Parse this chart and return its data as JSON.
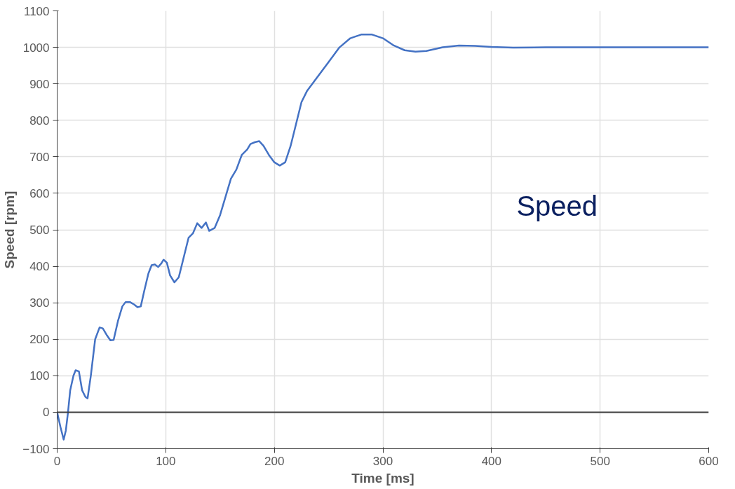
{
  "chart_data": {
    "type": "line",
    "xlabel": "Time [ms]",
    "ylabel": "Speed [rpm]",
    "annotations": [
      "Speed"
    ],
    "xlim": [
      0,
      600
    ],
    "xticks": [
      0,
      100,
      200,
      300,
      400,
      500,
      600
    ],
    "ylim": [
      -100,
      1100
    ],
    "yticks": [
      -100,
      0,
      100,
      200,
      300,
      400,
      500,
      600,
      700,
      800,
      900,
      1000,
      1100
    ],
    "grid": true,
    "marker": "none",
    "line_style": "solid",
    "ref_lines": [
      {
        "axis": "y",
        "value": 0,
        "color": "#404040"
      }
    ],
    "x": [
      0,
      3,
      6,
      8,
      10,
      12,
      15,
      17,
      20,
      23,
      26,
      28,
      31,
      35,
      39,
      42,
      46,
      49,
      52,
      56,
      60,
      63,
      67,
      71,
      74,
      77,
      80,
      84,
      87,
      90,
      93,
      96,
      98,
      101,
      104,
      108,
      112,
      117,
      121,
      125,
      129,
      133,
      137,
      140,
      145,
      150,
      155,
      160,
      165,
      170,
      175,
      178,
      182,
      186,
      190,
      195,
      200,
      205,
      210,
      215,
      220,
      225,
      230,
      240,
      250,
      260,
      270,
      280,
      290,
      300,
      310,
      320,
      330,
      340,
      355,
      370,
      385,
      400,
      420,
      450,
      500,
      550,
      600
    ],
    "series": [
      {
        "color": "#4472c4",
        "values": [
          0,
          -40,
          -75,
          -50,
          0,
          60,
          100,
          115,
          112,
          60,
          42,
          38,
          100,
          200,
          232,
          230,
          210,
          197,
          198,
          250,
          290,
          302,
          302,
          295,
          288,
          290,
          330,
          380,
          403,
          405,
          398,
          408,
          418,
          410,
          375,
          356,
          370,
          430,
          478,
          490,
          518,
          505,
          520,
          497,
          505,
          540,
          590,
          640,
          665,
          705,
          720,
          735,
          740,
          743,
          730,
          705,
          685,
          676,
          685,
          730,
          790,
          850,
          880,
          920,
          960,
          1000,
          1025,
          1035,
          1035,
          1025,
          1005,
          992,
          988,
          990,
          1000,
          1005,
          1004,
          1001,
          999,
          1000,
          1000,
          1000,
          1000
        ]
      }
    ]
  }
}
